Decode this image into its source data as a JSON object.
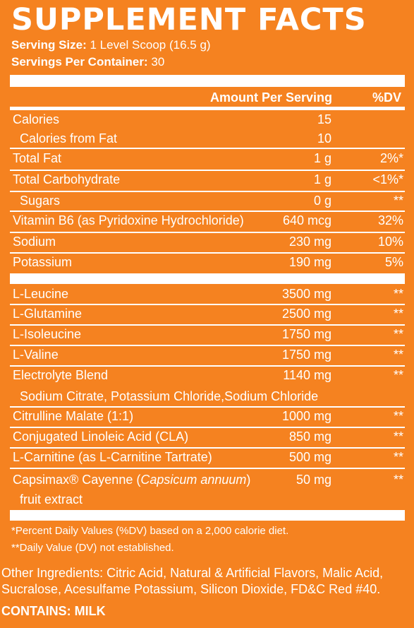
{
  "title": "SUPPLEMENT FACTS",
  "serving": {
    "size_label": "Serving Size:",
    "size_value": "1 Level Scoop (16.5 g)",
    "per_container_label": "Servings Per Container:",
    "per_container_value": "30"
  },
  "header": {
    "amount": "Amount Per Serving",
    "dv": "%DV"
  },
  "nutrients": [
    {
      "name": "Calories",
      "amount": "15",
      "dv": ""
    },
    {
      "name": "Calories from Fat",
      "amount": "10",
      "dv": ""
    },
    {
      "name": "Total Fat",
      "amount": "1 g",
      "dv": "2%*"
    },
    {
      "name": "Total Carbohydrate",
      "amount": "1 g",
      "dv": "<1%*"
    },
    {
      "name": "Sugars",
      "amount": "0 g",
      "dv": "**"
    },
    {
      "name": "Vitamin B6 (as Pyridoxine Hydrochloride)",
      "amount": "640 mcg",
      "dv": "32%"
    },
    {
      "name": "Sodium",
      "amount": "230 mg",
      "dv": "10%"
    },
    {
      "name": "Potassium",
      "amount": "190 mg",
      "dv": "5%"
    }
  ],
  "ingredients": [
    {
      "name": "L-Leucine",
      "amount": "3500 mg",
      "dv": "**"
    },
    {
      "name": "L-Glutamine",
      "amount": "2500 mg",
      "dv": "**"
    },
    {
      "name": "L-Isoleucine",
      "amount": "1750 mg",
      "dv": "**"
    },
    {
      "name": "L-Valine",
      "amount": "1750 mg",
      "dv": "**"
    },
    {
      "name": "Electrolyte Blend",
      "amount": "1140 mg",
      "dv": "**",
      "sub": "Sodium Citrate, Potassium Chloride,Sodium Chloride"
    },
    {
      "name": "Citrulline Malate (1:1)",
      "amount": "1000 mg",
      "dv": "**"
    },
    {
      "name": "Conjugated Linoleic Acid (CLA)",
      "amount": "850 mg",
      "dv": "**"
    },
    {
      "name": "L-Carnitine (as L-Carnitine Tartrate)",
      "amount": "500 mg",
      "dv": "**"
    },
    {
      "name_prefix": "Capsimax® Cayenne (",
      "name_italic": "Capsicum annuum",
      "name_suffix": ")",
      "amount": "50 mg",
      "dv": "**",
      "sub": "fruit extract"
    }
  ],
  "footnotes": {
    "dv_note": "*Percent Daily Values (%DV) based on a 2,000 calorie diet.",
    "not_established": "**Daily Value (DV) not established."
  },
  "other_ingredients": "Other Ingredients: Citric Acid, Natural & Artificial Flavors, Malic Acid, Sucralose, Acesulfame Potassium, Silicon Dioxide, FD&C Red #40.",
  "contains": "CONTAINS: MILK"
}
